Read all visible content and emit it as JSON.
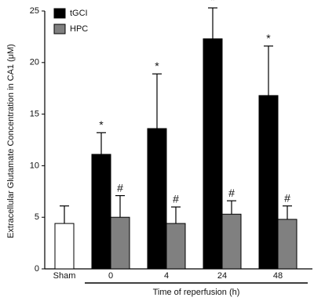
{
  "chart_data": {
    "type": "bar",
    "ylabel": "Extracellular Glutamate Concentration in CA1 (μM)",
    "xlabel": "Time of reperfusion (h)",
    "categories": [
      "Sham",
      "0",
      "4",
      "24",
      "48"
    ],
    "series": [
      {
        "color": "#ffffff",
        "values": [
          4.4,
          null,
          null,
          null,
          null
        ],
        "errors": [
          1.7,
          null,
          null,
          null,
          null
        ]
      },
      {
        "name": "tGCI",
        "color": "#000000",
        "values": [
          null,
          11.1,
          13.6,
          22.3,
          16.8
        ],
        "errors": [
          null,
          2.1,
          5.3,
          3.0,
          4.8
        ],
        "markers": [
          null,
          "*",
          "*",
          "*",
          "*"
        ]
      },
      {
        "name": "HPC",
        "color": "#808080",
        "values": [
          null,
          5.0,
          4.4,
          5.3,
          4.8
        ],
        "errors": [
          null,
          2.1,
          1.6,
          1.3,
          1.3
        ],
        "markers": [
          null,
          "#",
          "#",
          "#",
          "#"
        ]
      }
    ],
    "ylim": [
      0,
      25
    ],
    "yticks": [
      0,
      5,
      10,
      15,
      20,
      25
    ]
  }
}
